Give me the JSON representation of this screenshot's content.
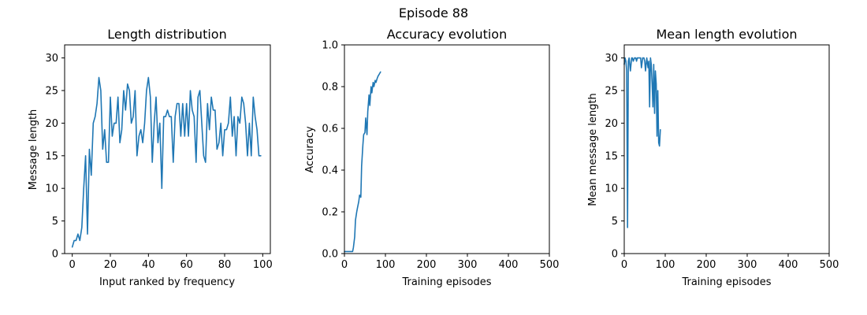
{
  "figure": {
    "suptitle": "Episode 88"
  },
  "chart_data": [
    {
      "type": "line",
      "title": "Length distribution",
      "xlabel": "Input ranked by frequency",
      "ylabel": "Message length",
      "xlim": [
        -4,
        104
      ],
      "ylim": [
        0,
        32
      ],
      "xticks": [
        0,
        20,
        40,
        60,
        80,
        100
      ],
      "yticks": [
        0,
        5,
        10,
        15,
        20,
        25,
        30
      ],
      "ytick_format": "int",
      "grid": false,
      "color": "#1f77b4",
      "series": [
        {
          "x": [
            0,
            1,
            2,
            3,
            4,
            5,
            6,
            7,
            8,
            9,
            10,
            11,
            12,
            13,
            14,
            15,
            16,
            17,
            18,
            19,
            20,
            21,
            22,
            23,
            24,
            25,
            26,
            27,
            28,
            29,
            30,
            31,
            32,
            33,
            34,
            35,
            36,
            37,
            38,
            39,
            40,
            41,
            42,
            43,
            44,
            45,
            46,
            47,
            48,
            49,
            50,
            51,
            52,
            53,
            54,
            55,
            56,
            57,
            58,
            59,
            60,
            61,
            62,
            63,
            64,
            65,
            66,
            67,
            68,
            69,
            70,
            71,
            72,
            73,
            74,
            75,
            76,
            77,
            78,
            79,
            80,
            81,
            82,
            83,
            84,
            85,
            86,
            87,
            88,
            89,
            90,
            91,
            92,
            93,
            94,
            95,
            96,
            97,
            98,
            99
          ],
          "values": [
            1,
            2,
            2,
            3,
            2,
            4,
            10,
            15,
            3,
            16,
            12,
            20,
            21,
            23,
            27,
            25,
            16,
            19,
            14,
            14,
            24,
            18,
            20,
            20,
            24,
            17,
            19,
            25,
            22,
            26,
            25,
            20,
            21,
            25,
            15,
            18,
            19,
            17,
            20,
            25,
            27,
            24,
            14,
            20,
            24,
            17,
            20,
            10,
            21,
            21,
            22,
            21,
            21,
            14,
            21,
            23,
            23,
            18,
            23,
            18,
            23,
            18,
            25,
            22,
            21,
            14,
            24,
            25,
            20,
            15,
            14,
            23,
            19,
            24,
            22,
            22,
            16,
            17,
            20,
            15,
            19,
            19,
            20,
            24,
            18,
            21,
            15,
            21,
            20,
            24,
            23,
            20,
            15,
            20,
            15,
            24,
            21,
            19,
            15,
            15
          ]
        }
      ]
    },
    {
      "type": "line",
      "title": "Accuracy evolution",
      "xlabel": "Training episodes",
      "ylabel": "Accuracy",
      "xlim": [
        0,
        500
      ],
      "ylim": [
        0,
        1.0
      ],
      "xticks": [
        0,
        100,
        200,
        300,
        400,
        500
      ],
      "yticks": [
        0.0,
        0.2,
        0.4,
        0.6,
        0.8,
        1.0
      ],
      "ytick_format": "1dp",
      "grid": false,
      "color": "#1f77b4",
      "series": [
        {
          "x": [
            0,
            5,
            10,
            15,
            20,
            22,
            25,
            27,
            30,
            32,
            35,
            37,
            40,
            42,
            45,
            47,
            50,
            52,
            55,
            57,
            60,
            62,
            65,
            67,
            70,
            72,
            75,
            77,
            80,
            82,
            85,
            88
          ],
          "values": [
            0.01,
            0.01,
            0.01,
            0.01,
            0.01,
            0.03,
            0.08,
            0.16,
            0.2,
            0.22,
            0.25,
            0.28,
            0.27,
            0.42,
            0.52,
            0.57,
            0.58,
            0.65,
            0.57,
            0.68,
            0.76,
            0.71,
            0.8,
            0.77,
            0.82,
            0.8,
            0.83,
            0.82,
            0.84,
            0.85,
            0.86,
            0.87
          ]
        }
      ]
    },
    {
      "type": "line",
      "title": "Mean length evolution",
      "xlabel": "Training episodes",
      "ylabel": "Mean message length",
      "xlim": [
        0,
        500
      ],
      "ylim": [
        0,
        32
      ],
      "xticks": [
        0,
        100,
        200,
        300,
        400,
        500
      ],
      "yticks": [
        0,
        5,
        10,
        15,
        20,
        25,
        30
      ],
      "ytick_format": "int",
      "grid": false,
      "color": "#1f77b4",
      "series": [
        {
          "x": [
            0,
            2,
            4,
            6,
            8,
            10,
            12,
            15,
            18,
            20,
            22,
            25,
            28,
            30,
            32,
            35,
            38,
            40,
            42,
            45,
            48,
            50,
            52,
            55,
            58,
            60,
            62,
            64,
            66,
            68,
            70,
            72,
            74,
            76,
            78,
            80,
            82,
            84,
            86,
            88
          ],
          "values": [
            29,
            30,
            29.5,
            28,
            4,
            29.5,
            30,
            28,
            30,
            30,
            29.5,
            30,
            30,
            29.5,
            30,
            30,
            30,
            30,
            28.5,
            30,
            30,
            29.5,
            28,
            30,
            28.5,
            29.5,
            22.5,
            30,
            29,
            26,
            22.5,
            29,
            21.5,
            28,
            26,
            18,
            25,
            17,
            16.5,
            19
          ]
        }
      ]
    }
  ]
}
